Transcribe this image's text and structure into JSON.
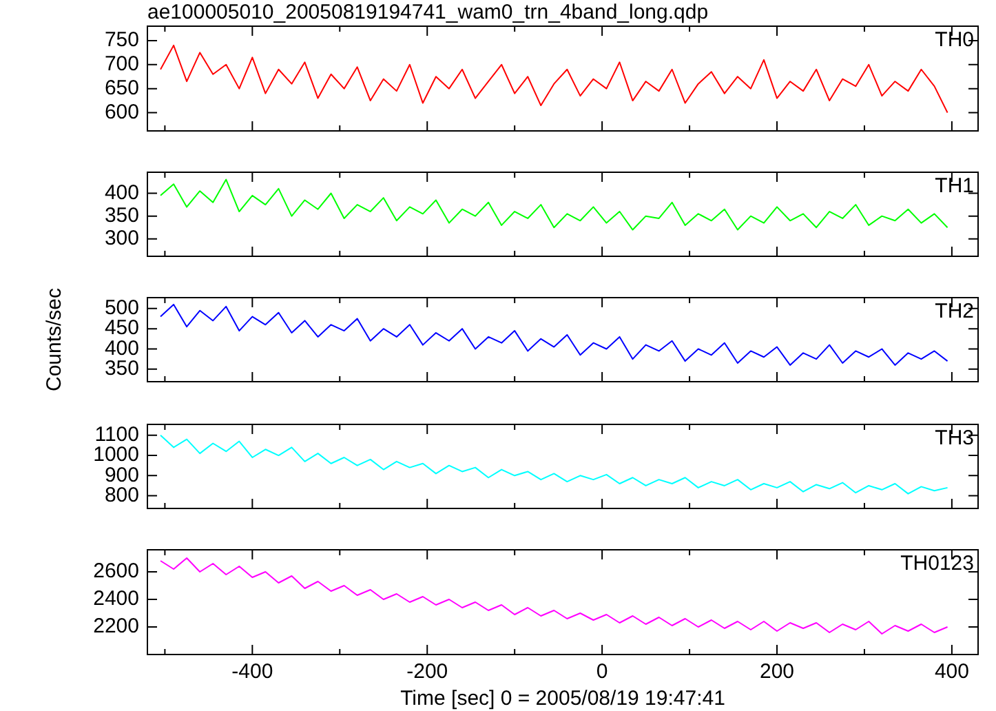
{
  "chart_data": [
    {
      "type": "line",
      "title": "ae100005010_20050819194741_wam0_trn_4band_long.qdp",
      "marker": "none",
      "tick_labels": "y",
      "x": [
        -505,
        -490,
        -475,
        -460,
        -445,
        -430,
        -415,
        -400,
        -385,
        -370,
        -355,
        -340,
        -325,
        -310,
        -295,
        -280,
        -265,
        -250,
        -235,
        -220,
        -205,
        -190,
        -175,
        -160,
        -145,
        -130,
        -115,
        -100,
        -85,
        -70,
        -55,
        -40,
        -25,
        -10,
        5,
        20,
        35,
        50,
        65,
        80,
        95,
        110,
        125,
        140,
        155,
        170,
        185,
        200,
        215,
        230,
        245,
        260,
        275,
        290,
        305,
        320,
        335,
        350,
        365,
        380,
        395
      ],
      "xlim": [
        -520,
        430
      ],
      "xticks": [
        {
          "value": -500,
          "label": null
        },
        -400,
        {
          "value": -300,
          "label": null
        },
        -200,
        {
          "value": -100,
          "label": null
        },
        0,
        {
          "value": 100,
          "label": null
        },
        200,
        {
          "value": 300,
          "label": null
        },
        400
      ],
      "ylim": [
        562,
        780
      ],
      "yticks": [
        600,
        650,
        700,
        750
      ],
      "series": [
        {
          "name": "TH0",
          "color": "#ff0000",
          "values": [
            690,
            740,
            665,
            725,
            680,
            700,
            650,
            715,
            640,
            690,
            660,
            705,
            630,
            680,
            650,
            695,
            625,
            670,
            645,
            700,
            620,
            675,
            650,
            690,
            630,
            665,
            700,
            640,
            675,
            615,
            660,
            690,
            635,
            670,
            650,
            705,
            625,
            665,
            645,
            690,
            620,
            660,
            685,
            640,
            675,
            650,
            710,
            630,
            665,
            645,
            690,
            625,
            670,
            655,
            700,
            635,
            665,
            645,
            690,
            655,
            600
          ]
        }
      ]
    },
    {
      "type": "line",
      "marker": "none",
      "tick_labels": "y",
      "x": [
        -505,
        -490,
        -475,
        -460,
        -445,
        -430,
        -415,
        -400,
        -385,
        -370,
        -355,
        -340,
        -325,
        -310,
        -295,
        -280,
        -265,
        -250,
        -235,
        -220,
        -205,
        -190,
        -175,
        -160,
        -145,
        -130,
        -115,
        -100,
        -85,
        -70,
        -55,
        -40,
        -25,
        -10,
        5,
        20,
        35,
        50,
        65,
        80,
        95,
        110,
        125,
        140,
        155,
        170,
        185,
        200,
        215,
        230,
        245,
        260,
        275,
        290,
        305,
        320,
        335,
        350,
        365,
        380,
        395
      ],
      "xlim": [
        -520,
        430
      ],
      "xticks": [
        {
          "value": -500,
          "label": null
        },
        -400,
        {
          "value": -300,
          "label": null
        },
        -200,
        {
          "value": -100,
          "label": null
        },
        0,
        {
          "value": 100,
          "label": null
        },
        200,
        {
          "value": 300,
          "label": null
        },
        400
      ],
      "ylim": [
        262,
        446
      ],
      "yticks": [
        300,
        350,
        400
      ],
      "series": [
        {
          "name": "TH1",
          "color": "#00ff00",
          "values": [
            395,
            420,
            370,
            405,
            380,
            430,
            360,
            395,
            375,
            410,
            350,
            385,
            365,
            400,
            345,
            375,
            360,
            390,
            340,
            370,
            355,
            385,
            335,
            365,
            350,
            380,
            330,
            360,
            345,
            375,
            325,
            355,
            340,
            370,
            335,
            360,
            320,
            350,
            345,
            380,
            330,
            355,
            340,
            365,
            320,
            350,
            335,
            370,
            340,
            355,
            325,
            360,
            345,
            375,
            330,
            350,
            340,
            365,
            335,
            355,
            325
          ]
        }
      ]
    },
    {
      "type": "line",
      "ylabel": "Counts/sec",
      "marker": "none",
      "tick_labels": "y",
      "x": [
        -505,
        -490,
        -475,
        -460,
        -445,
        -430,
        -415,
        -400,
        -385,
        -370,
        -355,
        -340,
        -325,
        -310,
        -295,
        -280,
        -265,
        -250,
        -235,
        -220,
        -205,
        -190,
        -175,
        -160,
        -145,
        -130,
        -115,
        -100,
        -85,
        -70,
        -55,
        -40,
        -25,
        -10,
        5,
        20,
        35,
        50,
        65,
        80,
        95,
        110,
        125,
        140,
        155,
        170,
        185,
        200,
        215,
        230,
        245,
        260,
        275,
        290,
        305,
        320,
        335,
        350,
        365,
        380,
        395
      ],
      "xlim": [
        -520,
        430
      ],
      "xticks": [
        {
          "value": -500,
          "label": null
        },
        -400,
        {
          "value": -300,
          "label": null
        },
        -200,
        {
          "value": -100,
          "label": null
        },
        0,
        {
          "value": 100,
          "label": null
        },
        200,
        {
          "value": 300,
          "label": null
        },
        400
      ],
      "ylim": [
        319,
        527
      ],
      "yticks": [
        350,
        400,
        450,
        500
      ],
      "series": [
        {
          "name": "TH2",
          "color": "#0000ff",
          "values": [
            480,
            510,
            455,
            495,
            470,
            505,
            445,
            480,
            460,
            490,
            440,
            470,
            430,
            460,
            445,
            475,
            420,
            450,
            430,
            460,
            410,
            440,
            420,
            450,
            400,
            430,
            415,
            445,
            395,
            425,
            405,
            435,
            385,
            415,
            400,
            430,
            375,
            410,
            395,
            420,
            370,
            400,
            385,
            415,
            365,
            395,
            380,
            405,
            360,
            390,
            375,
            410,
            365,
            395,
            380,
            400,
            360,
            390,
            375,
            395,
            370
          ]
        }
      ]
    },
    {
      "type": "line",
      "marker": "none",
      "tick_labels": "y",
      "x": [
        -505,
        -490,
        -475,
        -460,
        -445,
        -430,
        -415,
        -400,
        -385,
        -370,
        -355,
        -340,
        -325,
        -310,
        -295,
        -280,
        -265,
        -250,
        -235,
        -220,
        -205,
        -190,
        -175,
        -160,
        -145,
        -130,
        -115,
        -100,
        -85,
        -70,
        -55,
        -40,
        -25,
        -10,
        5,
        20,
        35,
        50,
        65,
        80,
        95,
        110,
        125,
        140,
        155,
        170,
        185,
        200,
        215,
        230,
        245,
        260,
        275,
        290,
        305,
        320,
        335,
        350,
        365,
        380,
        395
      ],
      "xlim": [
        -520,
        430
      ],
      "xticks": [
        {
          "value": -500,
          "label": null
        },
        -400,
        {
          "value": -300,
          "label": null
        },
        -200,
        {
          "value": -100,
          "label": null
        },
        0,
        {
          "value": 100,
          "label": null
        },
        200,
        {
          "value": 300,
          "label": null
        },
        400
      ],
      "ylim": [
        737,
        1154
      ],
      "yticks": [
        800,
        900,
        1000,
        1100
      ],
      "series": [
        {
          "name": "TH3",
          "color": "#00ffff",
          "values": [
            1100,
            1040,
            1080,
            1010,
            1060,
            1020,
            1070,
            990,
            1030,
            1000,
            1040,
            970,
            1010,
            960,
            990,
            950,
            980,
            930,
            970,
            940,
            960,
            910,
            950,
            920,
            940,
            890,
            930,
            900,
            920,
            880,
            910,
            870,
            900,
            880,
            905,
            860,
            890,
            850,
            880,
            860,
            890,
            840,
            870,
            850,
            880,
            830,
            860,
            840,
            870,
            820,
            855,
            835,
            865,
            815,
            850,
            830,
            860,
            810,
            845,
            825,
            840
          ]
        }
      ]
    },
    {
      "type": "line",
      "xlabel": "Time [sec] 0 = 2005/08/19 19:47:41",
      "marker": "none",
      "x": [
        -505,
        -490,
        -475,
        -460,
        -445,
        -430,
        -415,
        -400,
        -385,
        -370,
        -355,
        -340,
        -325,
        -310,
        -295,
        -280,
        -265,
        -250,
        -235,
        -220,
        -205,
        -190,
        -175,
        -160,
        -145,
        -130,
        -115,
        -100,
        -85,
        -70,
        -55,
        -40,
        -25,
        -10,
        5,
        20,
        35,
        50,
        65,
        80,
        95,
        110,
        125,
        140,
        155,
        170,
        185,
        200,
        215,
        230,
        245,
        260,
        275,
        290,
        305,
        320,
        335,
        350,
        365,
        380,
        395
      ],
      "xlim": [
        -520,
        430
      ],
      "xticks": [
        {
          "value": -500,
          "label": null
        },
        -400,
        {
          "value": -300,
          "label": null
        },
        -200,
        {
          "value": -100,
          "label": null
        },
        0,
        {
          "value": 100,
          "label": null
        },
        200,
        {
          "value": 300,
          "label": null
        },
        400
      ],
      "ylim": [
        2000,
        2760
      ],
      "yticks": [
        2200,
        2400,
        2600
      ],
      "series": [
        {
          "name": "TH0123",
          "color": "#ff00ff",
          "values": [
            2680,
            2620,
            2700,
            2600,
            2660,
            2580,
            2640,
            2560,
            2600,
            2520,
            2570,
            2480,
            2530,
            2460,
            2500,
            2430,
            2470,
            2400,
            2440,
            2380,
            2420,
            2360,
            2400,
            2340,
            2380,
            2320,
            2360,
            2290,
            2340,
            2280,
            2320,
            2260,
            2300,
            2250,
            2290,
            2230,
            2280,
            2220,
            2270,
            2210,
            2260,
            2200,
            2250,
            2190,
            2240,
            2180,
            2240,
            2170,
            2230,
            2190,
            2230,
            2160,
            2220,
            2180,
            2240,
            2150,
            2210,
            2170,
            2220,
            2160,
            2200
          ]
        }
      ]
    }
  ]
}
